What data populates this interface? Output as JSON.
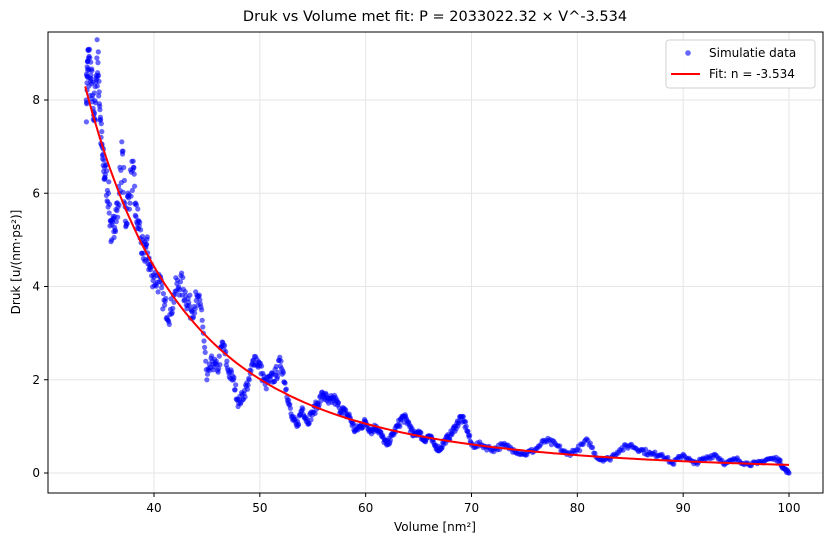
{
  "chart_data": {
    "type": "scatter",
    "title": "Druk vs Volume met fit: P = 2033022.32 × V^-3.534",
    "xlabel": "Volume [nm²]",
    "ylabel": "Druk [u/(nm·ps²)]",
    "xlim": [
      30.1,
      103.3
    ],
    "ylim": [
      -0.45,
      9.4
    ],
    "xticks": [
      40,
      50,
      60,
      70,
      80,
      90,
      100
    ],
    "yticks": [
      0,
      2,
      4,
      6,
      8
    ],
    "grid": true,
    "legend_position": "upper right",
    "legend": [
      {
        "label": "Simulatie data",
        "type": "marker",
        "color": "#0000ff"
      },
      {
        "label": "Fit: n = -3.534",
        "type": "line",
        "color": "#ff0000"
      }
    ],
    "series": [
      {
        "name": "Simulatie data",
        "kind": "scatter",
        "color": "#0000ff",
        "alpha": 0.6,
        "x_range": [
          33.5,
          100.0
        ],
        "sampled_points": [
          [
            33.6,
            8.0
          ],
          [
            33.7,
            8.5
          ],
          [
            33.8,
            8.9
          ],
          [
            34.0,
            8.4
          ],
          [
            34.2,
            8.1
          ],
          [
            34.4,
            7.6
          ],
          [
            34.6,
            8.9
          ],
          [
            34.8,
            8.4
          ],
          [
            35.0,
            7.2
          ],
          [
            35.2,
            6.6
          ],
          [
            35.4,
            6.4
          ],
          [
            35.7,
            6.0
          ],
          [
            36.0,
            5.0
          ],
          [
            36.3,
            5.5
          ],
          [
            36.6,
            5.7
          ],
          [
            37.0,
            6.9
          ],
          [
            37.3,
            5.4
          ],
          [
            37.6,
            5.9
          ],
          [
            38.0,
            6.5
          ],
          [
            38.3,
            5.5
          ],
          [
            38.6,
            5.3
          ],
          [
            39.0,
            4.6
          ],
          [
            39.3,
            4.9
          ],
          [
            39.6,
            4.4
          ],
          [
            40.0,
            4.2
          ],
          [
            40.5,
            4.1
          ],
          [
            41.0,
            3.6
          ],
          [
            41.5,
            3.4
          ],
          [
            42.0,
            3.9
          ],
          [
            42.5,
            4.1
          ],
          [
            43.0,
            3.8
          ],
          [
            43.5,
            3.5
          ],
          [
            44.0,
            3.7
          ],
          [
            44.5,
            3.5
          ],
          [
            45.0,
            2.0
          ],
          [
            45.5,
            2.4
          ],
          [
            46.0,
            2.2
          ],
          [
            46.5,
            2.8
          ],
          [
            47.0,
            2.2
          ],
          [
            47.5,
            2.0
          ],
          [
            48.0,
            1.5
          ],
          [
            48.5,
            1.7
          ],
          [
            49.0,
            2.0
          ],
          [
            49.5,
            2.5
          ],
          [
            50.0,
            2.3
          ],
          [
            50.5,
            1.9
          ],
          [
            51.0,
            2.0
          ],
          [
            51.5,
            2.1
          ],
          [
            52.0,
            2.4
          ],
          [
            52.5,
            1.8
          ],
          [
            53.0,
            1.2
          ],
          [
            53.5,
            1.0
          ],
          [
            54.0,
            1.4
          ],
          [
            54.5,
            1.1
          ],
          [
            55.0,
            1.3
          ],
          [
            55.5,
            1.5
          ],
          [
            56.0,
            1.7
          ],
          [
            56.5,
            1.5
          ],
          [
            57.0,
            1.6
          ],
          [
            57.5,
            1.4
          ],
          [
            58.0,
            1.3
          ],
          [
            58.5,
            1.2
          ],
          [
            59.0,
            0.9
          ],
          [
            59.5,
            1.0
          ],
          [
            60.0,
            1.1
          ],
          [
            60.5,
            0.9
          ],
          [
            61.0,
            1.0
          ],
          [
            61.5,
            0.8
          ],
          [
            62.0,
            0.6
          ],
          [
            62.5,
            0.8
          ],
          [
            63.0,
            1.0
          ],
          [
            63.5,
            1.2
          ],
          [
            64.0,
            1.1
          ],
          [
            64.5,
            0.8
          ],
          [
            65.0,
            0.9
          ],
          [
            65.5,
            0.7
          ],
          [
            66.0,
            0.8
          ],
          [
            66.5,
            0.6
          ],
          [
            67.0,
            0.5
          ],
          [
            67.5,
            0.7
          ],
          [
            68.0,
            0.8
          ],
          [
            68.5,
            1.0
          ],
          [
            69.0,
            1.2
          ],
          [
            69.5,
            1.0
          ],
          [
            70.0,
            0.6
          ],
          [
            71.0,
            0.6
          ],
          [
            72.0,
            0.5
          ],
          [
            73.0,
            0.6
          ],
          [
            74.0,
            0.5
          ],
          [
            75.0,
            0.4
          ],
          [
            76.0,
            0.5
          ],
          [
            77.0,
            0.7
          ],
          [
            78.0,
            0.6
          ],
          [
            79.0,
            0.4
          ],
          [
            80.0,
            0.5
          ],
          [
            81.0,
            0.7
          ],
          [
            82.0,
            0.3
          ],
          [
            83.0,
            0.3
          ],
          [
            84.0,
            0.5
          ],
          [
            85.0,
            0.6
          ],
          [
            86.0,
            0.5
          ],
          [
            87.0,
            0.4
          ],
          [
            88.0,
            0.4
          ],
          [
            89.0,
            0.2
          ],
          [
            90.0,
            0.4
          ],
          [
            91.0,
            0.2
          ],
          [
            92.0,
            0.3
          ],
          [
            93.0,
            0.4
          ],
          [
            94.0,
            0.2
          ],
          [
            95.0,
            0.3
          ],
          [
            96.0,
            0.2
          ],
          [
            97.0,
            0.2
          ],
          [
            98.0,
            0.3
          ],
          [
            99.0,
            0.3
          ],
          [
            99.5,
            0.1
          ],
          [
            100.0,
            0.0
          ]
        ]
      },
      {
        "name": "Fit: n = -3.534",
        "kind": "line",
        "color": "#ff0000",
        "function": "P = 2033022.32 * V^-3.534",
        "coefficient": 2033022.32,
        "exponent": -3.534,
        "x_range": [
          33.5,
          100.0
        ]
      }
    ]
  }
}
